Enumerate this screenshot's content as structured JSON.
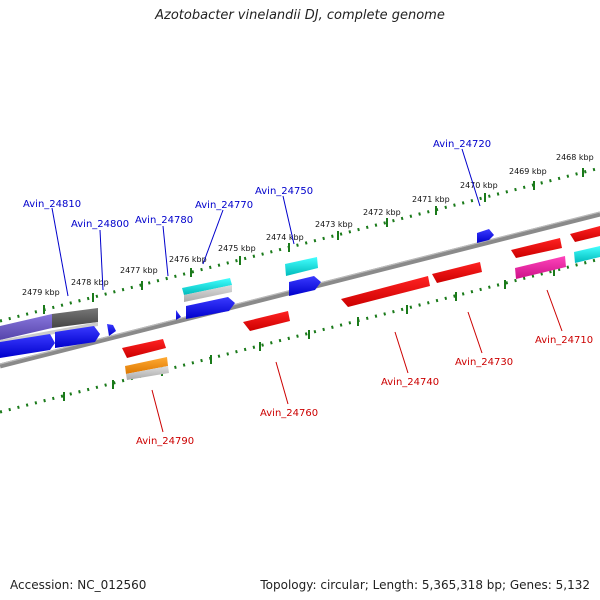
{
  "title": "Azotobacter vinelandii DJ, complete genome",
  "footer": {
    "accession": "Accession: NC_012560",
    "summary": "Topology: circular; Length: 5,365,318 bp; Genes: 5,132"
  },
  "colors": {
    "backbone": "#8a8a8a",
    "tick": "#1a7a1a",
    "forward_label": "#0000cc",
    "reverse_label": "#cc0000",
    "blue": "#0000ff",
    "red": "#ff0000",
    "cyan": "#00dddd",
    "gray": "#666666",
    "lavender": "#7766cc",
    "magenta": "#ee2299",
    "orange": "#ff8800",
    "lightgray": "#bbbbbb"
  },
  "kbp_labels": [
    "2479 kbp",
    "2478 kbp",
    "2477 kbp",
    "2476 kbp",
    "2475 kbp",
    "2474 kbp",
    "2473 kbp",
    "2472 kbp",
    "2471 kbp",
    "2470 kbp",
    "2469 kbp",
    "2468 kbp"
  ],
  "forward_labels": [
    "Avin_24810",
    "Avin_24800",
    "Avin_24780",
    "Avin_24770",
    "Avin_24750",
    "Avin_24720"
  ],
  "reverse_labels": [
    "Avin_24790",
    "Avin_24760",
    "Avin_24740",
    "Avin_24730",
    "Avin_24710"
  ]
}
